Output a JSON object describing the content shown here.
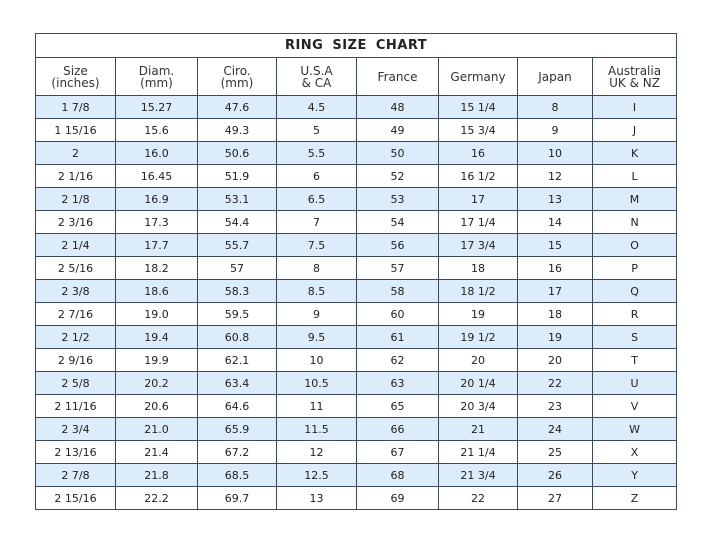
{
  "title": "RING SIZE  CHART",
  "columns": [
    [
      "Size",
      "(inches)"
    ],
    [
      "Diam.",
      "(mm)"
    ],
    [
      "Ciro.",
      "(mm)"
    ],
    [
      "U.S.A",
      "& CA"
    ],
    [
      "France",
      ""
    ],
    [
      "Germany",
      ""
    ],
    [
      "Japan",
      ""
    ],
    [
      "Australia",
      "UK & NZ"
    ]
  ],
  "row_highlight_color": "#dcecfb",
  "rows": [
    [
      "1 7/8",
      "15.27",
      "47.6",
      "4.5",
      "48",
      "15 1/4",
      "8",
      "I"
    ],
    [
      "1 15/16",
      "15.6",
      "49.3",
      "5",
      "49",
      "15 3/4",
      "9",
      "J"
    ],
    [
      "2",
      "16.0",
      "50.6",
      "5.5",
      "50",
      "16",
      "10",
      "K"
    ],
    [
      "2 1/16",
      "16.45",
      "51.9",
      "6",
      "52",
      "16 1/2",
      "12",
      "L"
    ],
    [
      "2 1/8",
      "16.9",
      "53.1",
      "6.5",
      "53",
      "17",
      "13",
      "M"
    ],
    [
      "2 3/16",
      "17.3",
      "54.4",
      "7",
      "54",
      "17 1/4",
      "14",
      "N"
    ],
    [
      "2 1/4",
      "17.7",
      "55.7",
      "7.5",
      "56",
      "17 3/4",
      "15",
      "O"
    ],
    [
      "2 5/16",
      "18.2",
      "57",
      "8",
      "57",
      "18",
      "16",
      "P"
    ],
    [
      "2 3/8",
      "18.6",
      "58.3",
      "8.5",
      "58",
      "18 1/2",
      "17",
      "Q"
    ],
    [
      "2 7/16",
      "19.0",
      "59.5",
      "9",
      "60",
      "19",
      "18",
      "R"
    ],
    [
      "2 1/2",
      "19.4",
      "60.8",
      "9.5",
      "61",
      "19 1/2",
      "19",
      "S"
    ],
    [
      "2 9/16",
      "19.9",
      "62.1",
      "10",
      "62",
      "20",
      "20",
      "T"
    ],
    [
      "2 5/8",
      "20.2",
      "63.4",
      "10.5",
      "63",
      "20 1/4",
      "22",
      "U"
    ],
    [
      "2 11/16",
      "20.6",
      "64.6",
      "11",
      "65",
      "20 3/4",
      "23",
      "V"
    ],
    [
      "2 3/4",
      "21.0",
      "65.9",
      "11.5",
      "66",
      "21",
      "24",
      "W"
    ],
    [
      "2 13/16",
      "21.4",
      "67.2",
      "12",
      "67",
      "21 1/4",
      "25",
      "X"
    ],
    [
      "2 7/8",
      "21.8",
      "68.5",
      "12.5",
      "68",
      "21 3/4",
      "26",
      "Y"
    ],
    [
      "2 15/16",
      "22.2",
      "69.7",
      "13",
      "69",
      "22",
      "27",
      "Z"
    ]
  ]
}
